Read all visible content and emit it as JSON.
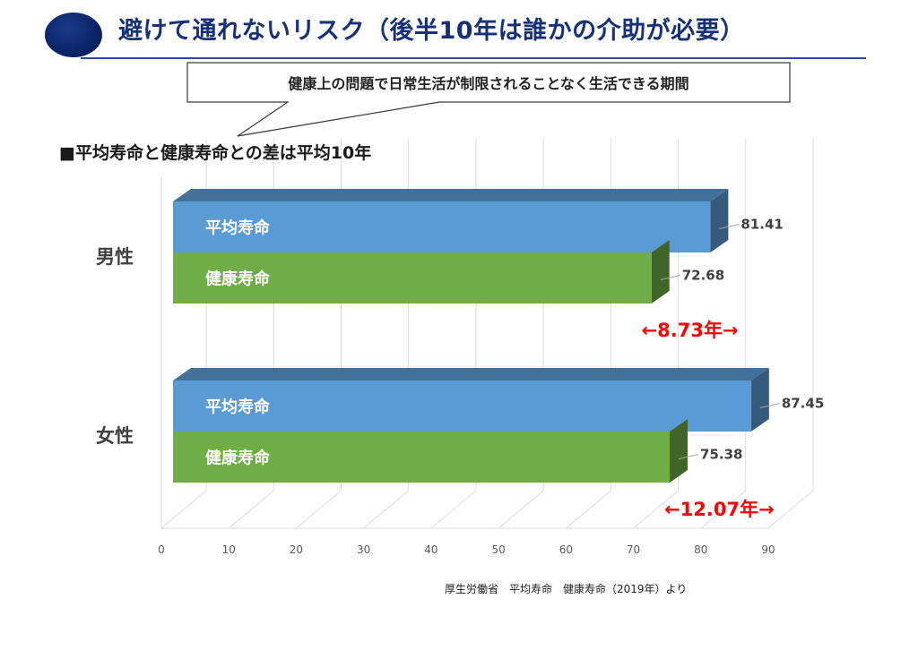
{
  "header": {
    "title": "避けて通れないリスク（後半10年は誰かの介助が必要）"
  },
  "callout": {
    "text": "健康上の問題で日常生活が制限されることなく生活できる期間"
  },
  "subtitle": "■平均寿命と健康寿命との差は平均10年",
  "source": "厚生労働省　平均寿命　健康寿命（2019年）より",
  "colors": {
    "average": "#5b9bd5",
    "healthy": "#70ad47",
    "gap_text": "#ff0000",
    "title": "#17307a"
  },
  "chart_data": {
    "type": "bar",
    "orientation": "horizontal",
    "title": "",
    "xlabel": "",
    "ylabel": "",
    "xlim": [
      0,
      90
    ],
    "x_ticks": [
      0,
      10,
      20,
      30,
      40,
      50,
      60,
      70,
      80,
      90
    ],
    "grid": true,
    "categories": [
      "男性",
      "女性"
    ],
    "series": [
      {
        "name": "平均寿命",
        "values": [
          81.41,
          87.45
        ]
      },
      {
        "name": "健康寿命",
        "values": [
          72.68,
          75.38
        ]
      }
    ],
    "data_labels": [
      [
        "81.41",
        "87.45"
      ],
      [
        "72.68",
        "75.38"
      ]
    ],
    "annotations": [
      "←8.73年→",
      "←12.07年→"
    ]
  }
}
